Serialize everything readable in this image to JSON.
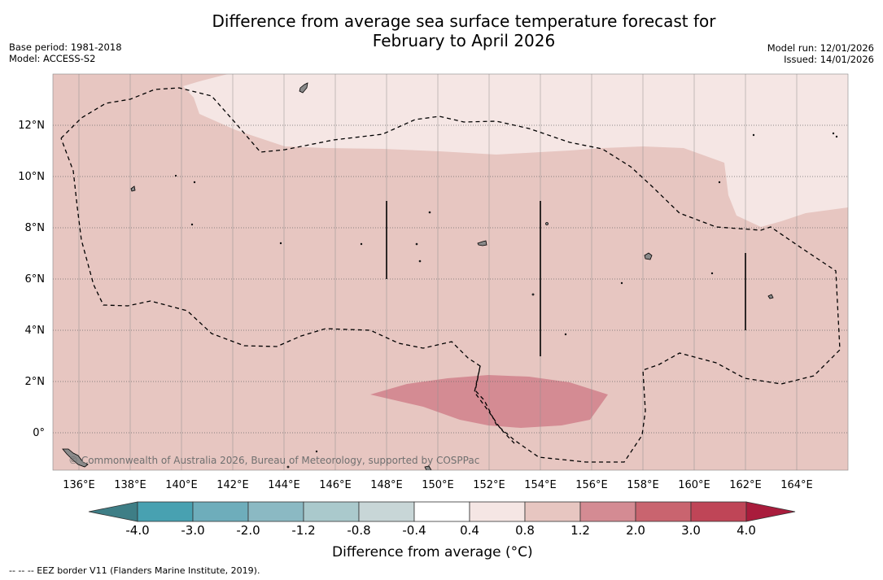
{
  "title": {
    "line1": "Difference from average sea surface temperature forecast for",
    "line2": "February to April 2026"
  },
  "meta_left": {
    "base_period": "Base period: 1981-2018",
    "model": "Model: ACCESS-S2"
  },
  "meta_right": {
    "model_run": "Model run: 12/01/2026",
    "issued": "Issued: 14/01/2026"
  },
  "map": {
    "lon_labels": [
      "136°E",
      "138°E",
      "140°E",
      "142°E",
      "144°E",
      "146°E",
      "148°E",
      "150°E",
      "152°E",
      "154°E",
      "156°E",
      "158°E",
      "160°E",
      "162°E",
      "164°E"
    ],
    "lat_labels": [
      "12°N",
      "10°N",
      "8°N",
      "6°N",
      "4°N",
      "2°N",
      "0°"
    ],
    "copyright": "© Commonwealth of Australia 2026, Bureau of Meteorology, supported by COSPPac",
    "colors": {
      "anomaly_0_4_0_8": "#f5e6e4",
      "anomaly_0_8_1_2": "#e7c6c1",
      "anomaly_1_2_2_0": "#d48b93",
      "land": "#8a8a8a"
    }
  },
  "colorbar": {
    "labels": [
      "-4.0",
      "-3.0",
      "-2.0",
      "-1.2",
      "-0.8",
      "-0.4",
      "0.4",
      "0.8",
      "1.2",
      "2.0",
      "3.0",
      "4.0"
    ],
    "colors": [
      "#48a1b1",
      "#6eadbb",
      "#8bb9c3",
      "#aac9cc",
      "#c8d6d7",
      "#ffffff",
      "#f5e6e4",
      "#e7c6c1",
      "#d48b93",
      "#c9646f",
      "#bf4557"
    ],
    "under_color": "#3e7e86",
    "over_color": "#a91c3c",
    "title": "Difference from average (°C)"
  },
  "eez_note": "--  --  -- EEZ border V11 (Flanders Marine Institute, 2019)."
}
